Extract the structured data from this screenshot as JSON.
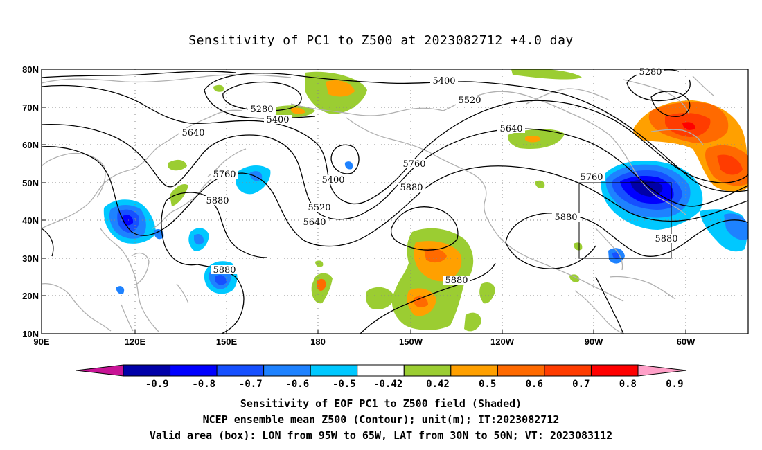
{
  "title": "Sensitivity of PC1 to Z500 at 2023082712 +4.0 day",
  "lat_labels": [
    "80N",
    "70N",
    "60N",
    "50N",
    "40N",
    "30N",
    "20N",
    "10N"
  ],
  "lon_labels": [
    "90E",
    "120E",
    "150E",
    "180",
    "150W",
    "120W",
    "90W",
    "60W"
  ],
  "contour_labels": [
    "5280",
    "5400",
    "5400",
    "5400",
    "5520",
    "5640",
    "5760",
    "5880",
    "5520",
    "5640",
    "5760",
    "5880",
    "5880",
    "5640",
    "5280",
    "5760",
    "5880",
    "5880",
    "5880"
  ],
  "colorbar": {
    "labels": [
      "-0.9",
      "-0.8",
      "-0.7",
      "-0.6",
      "-0.5",
      "-0.42",
      "0.42",
      "0.5",
      "0.6",
      "0.7",
      "0.8",
      "0.9"
    ],
    "colors": [
      "#0000a8",
      "#0000ff",
      "#1650ff",
      "#1e82ff",
      "#00c8ff",
      "#ffffff",
      "#9bcd32",
      "#ffa000",
      "#ff6a00",
      "#ff3c00",
      "#ff0000"
    ],
    "low_end_color": "#c81496",
    "high_end_color": "#ffa0c8"
  },
  "captions": [
    "Sensitivity of EOF PC1 to Z500 field (Shaded)",
    "NCEP ensemble mean Z500 (Contour); unit(m); IT:2023082712",
    "Valid area (box): LON from 95W to 65W, LAT from 30N to 50N; VT: 2023083112"
  ]
}
